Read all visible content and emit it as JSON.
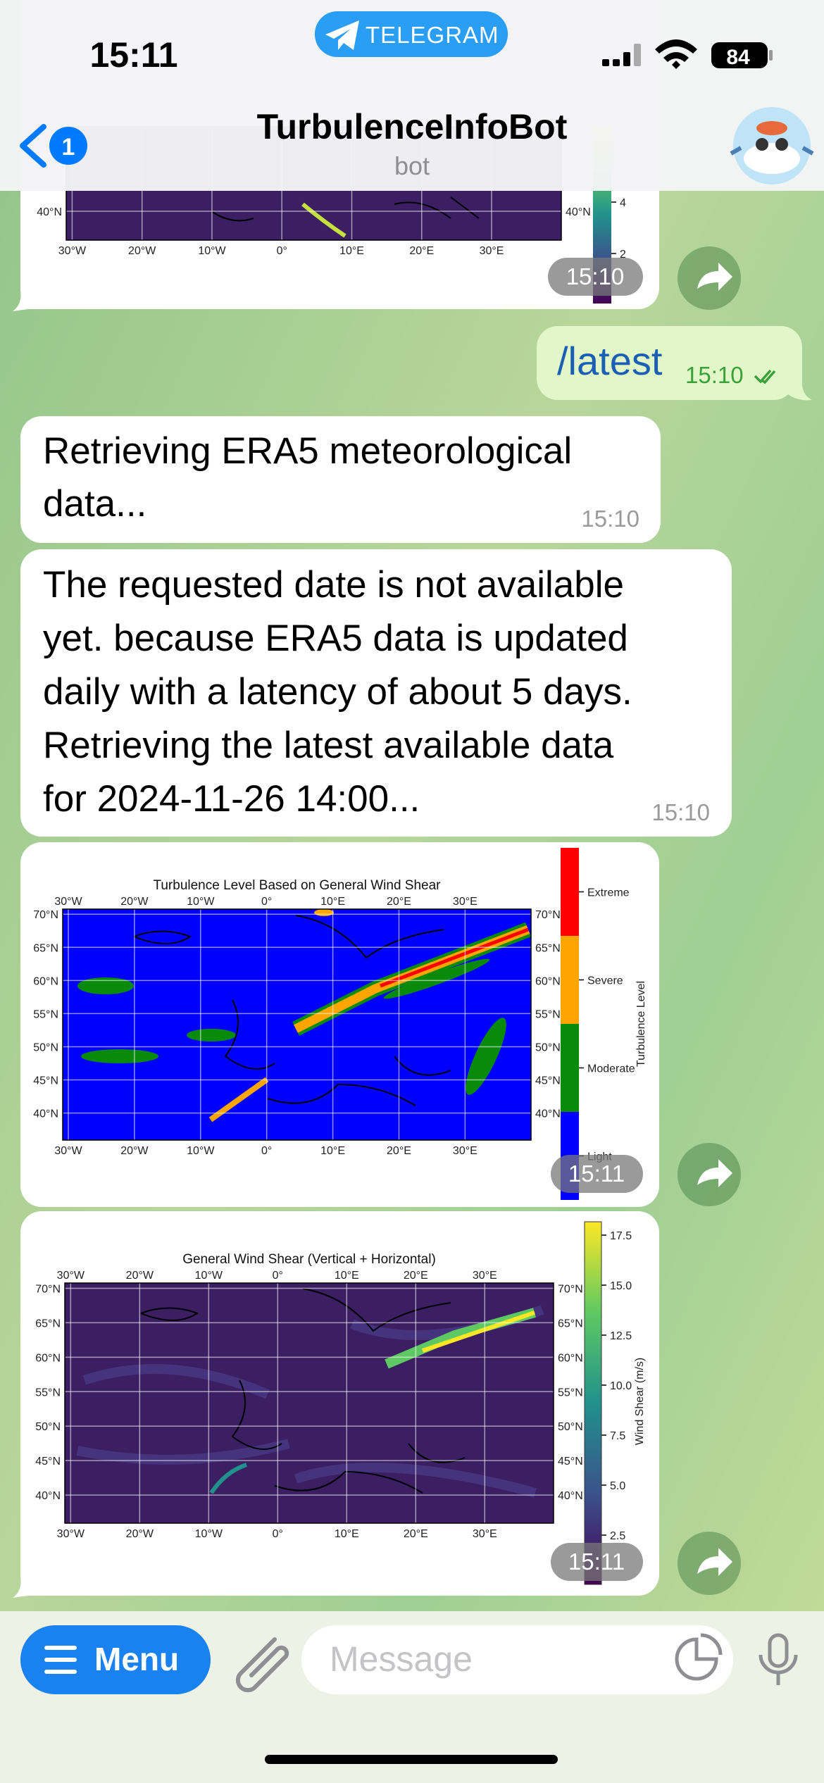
{
  "status_bar": {
    "time": "15:11",
    "app": "TELEGRAM",
    "battery": "84"
  },
  "header": {
    "back_badge": "1",
    "title": "TurbulenceInfoBot",
    "subtitle": "bot"
  },
  "messages": [
    {
      "image": {
        "y_labels_left": [
          "40°N"
        ],
        "y_labels_right": [
          "40°N"
        ],
        "colorbar_ticks": [
          "4",
          "2"
        ],
        "x_labels": [
          "30°W",
          "20°W",
          "10°W",
          "0°",
          "10°E",
          "20°E",
          "30°E"
        ]
      },
      "time": "15:10"
    },
    {
      "text": "/latest",
      "time": "15:10"
    },
    {
      "lines": [
        "Retrieving ERA5 meteorological",
        "data..."
      ],
      "time": "15:10"
    },
    {
      "lines": [
        "The requested date is not available",
        "yet. because ERA5 data is updated",
        "daily with a latency of about 5 days.",
        "Retrieving the latest available data",
        "for 2024-11-26 14:00..."
      ],
      "time": "15:10"
    },
    {
      "image": {
        "title": "Turbulence Level Based on General Wind Shear",
        "x_labels_top": [
          "30°W",
          "20°W",
          "10°W",
          "0°",
          "10°E",
          "20°E",
          "30°E"
        ],
        "x_labels_bottom": [
          "30°W",
          "20°W",
          "10°W",
          "0°",
          "10°E",
          "20°E",
          "30°E"
        ],
        "y_labels_left": [
          "70°N",
          "65°N",
          "60°N",
          "55°N",
          "50°N",
          "45°N",
          "40°N"
        ],
        "y_labels_right": [
          "70°N",
          "65°N",
          "60°N",
          "55°N",
          "50°N",
          "45°N",
          "40°N"
        ],
        "colorbar_labels": [
          "Extreme",
          "Severe",
          "Moderate",
          "Light"
        ],
        "colorbar_title": "Turbulence Level"
      },
      "time": "15:11"
    },
    {
      "image": {
        "title": "General Wind Shear (Vertical + Horizontal)",
        "x_labels_top": [
          "30°W",
          "20°W",
          "10°W",
          "0°",
          "10°E",
          "20°E",
          "30°E"
        ],
        "x_labels_bottom": [
          "30°W",
          "20°W",
          "10°W",
          "0°",
          "10°E",
          "20°E",
          "30°E"
        ],
        "y_labels_left": [
          "70°N",
          "65°N",
          "60°N",
          "55°N",
          "50°N",
          "45°N",
          "40°N"
        ],
        "y_labels_right": [
          "70°N",
          "65°N",
          "60°N",
          "55°N",
          "50°N",
          "45°N",
          "40°N"
        ],
        "colorbar_ticks": [
          "17.5",
          "15.0",
          "12.5",
          "10.0",
          "7.5",
          "5.0",
          "2.5"
        ],
        "colorbar_title": "Wind Shear (m/s)"
      },
      "time": "15:11"
    }
  ],
  "composer": {
    "menu": "Menu",
    "placeholder": "Message"
  }
}
